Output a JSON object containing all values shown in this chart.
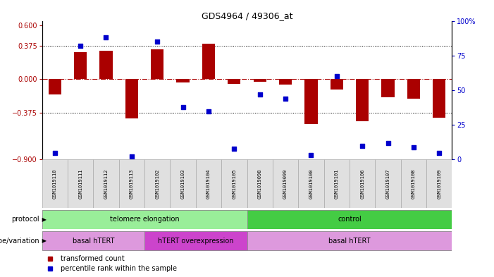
{
  "title": "GDS4964 / 49306_at",
  "samples": [
    "GSM1019110",
    "GSM1019111",
    "GSM1019112",
    "GSM1019113",
    "GSM1019102",
    "GSM1019103",
    "GSM1019104",
    "GSM1019105",
    "GSM1019098",
    "GSM1019099",
    "GSM1019100",
    "GSM1019101",
    "GSM1019106",
    "GSM1019107",
    "GSM1019108",
    "GSM1019109"
  ],
  "bar_values": [
    -0.17,
    0.3,
    0.32,
    -0.44,
    0.33,
    -0.04,
    0.4,
    -0.05,
    -0.03,
    -0.06,
    -0.5,
    -0.12,
    -0.47,
    -0.2,
    -0.22,
    -0.43
  ],
  "percentile_values": [
    5,
    82,
    88,
    2,
    85,
    38,
    35,
    8,
    47,
    44,
    3,
    60,
    10,
    12,
    9,
    5
  ],
  "ylim_left": [
    -0.9,
    0.65
  ],
  "ylim_right": [
    0,
    100
  ],
  "bar_color": "#aa0000",
  "dot_color": "#0000cc",
  "background_color": "#ffffff",
  "zero_line_color": "#aa0000",
  "protocol_groups": [
    {
      "label": "telomere elongation",
      "start": 0,
      "end": 8,
      "color": "#99ee99"
    },
    {
      "label": "control",
      "start": 8,
      "end": 16,
      "color": "#44cc44"
    }
  ],
  "genotype_groups": [
    {
      "label": "basal hTERT",
      "start": 0,
      "end": 4,
      "color": "#dd99dd"
    },
    {
      "label": "hTERT overexpression",
      "start": 4,
      "end": 8,
      "color": "#cc44cc"
    },
    {
      "label": "basal hTERT",
      "start": 8,
      "end": 16,
      "color": "#dd99dd"
    }
  ],
  "left_yticks": [
    -0.9,
    -0.375,
    0,
    0.375,
    0.6
  ],
  "right_yticks": [
    0,
    25,
    50,
    75,
    100
  ],
  "right_ytick_labels": [
    "0",
    "25",
    "50",
    "75",
    "100%"
  ]
}
